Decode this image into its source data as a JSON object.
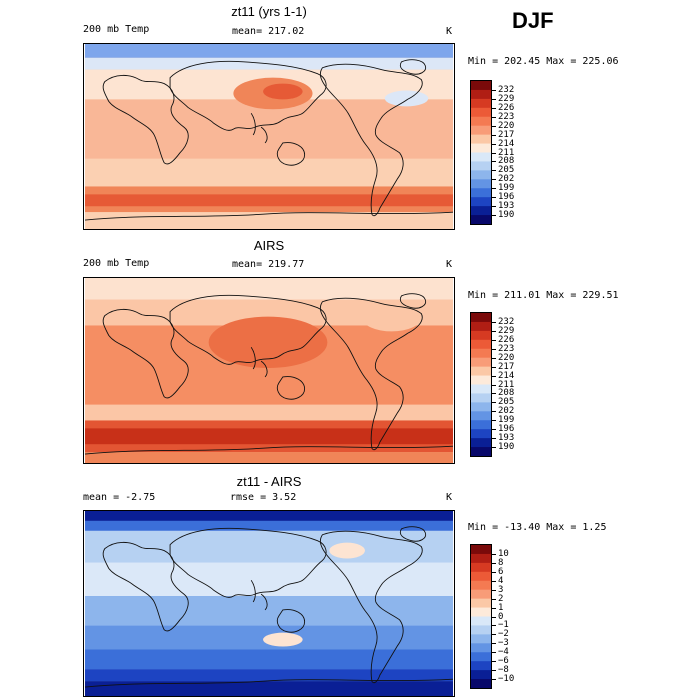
{
  "season": "DJF",
  "panels": [
    {
      "title": "zt11 (yrs 1-1)",
      "left_label": "200 mb Temp",
      "center_label": "mean= 217.02",
      "units": "K",
      "minmax": "Min = 202.45 Max = 225.06",
      "colorbar": {
        "labels": [
          "232",
          "229",
          "226",
          "223",
          "220",
          "217",
          "214",
          "211",
          "208",
          "205",
          "202",
          "199",
          "196",
          "193",
          "190"
        ],
        "colors": [
          "#7a0a0a",
          "#b01e14",
          "#d63a22",
          "#ec5a37",
          "#f47a52",
          "#f89c78",
          "#fbc8a6",
          "#fdeada",
          "#d9e8f8",
          "#b6d1f2",
          "#8db5ec",
          "#6394e4",
          "#3b6fd9",
          "#1d44c2",
          "#0a1f95",
          "#08086a"
        ]
      }
    },
    {
      "title": "AIRS",
      "left_label": "200 mb Temp",
      "center_label": "mean= 219.77",
      "units": "K",
      "minmax": "Min = 211.01 Max = 229.51",
      "colorbar": {
        "labels": [
          "232",
          "229",
          "226",
          "223",
          "220",
          "217",
          "214",
          "211",
          "208",
          "205",
          "202",
          "199",
          "196",
          "193",
          "190"
        ],
        "colors": [
          "#7a0a0a",
          "#b01e14",
          "#d63a22",
          "#ec5a37",
          "#f47a52",
          "#f89c78",
          "#fbc8a6",
          "#fdeada",
          "#d9e8f8",
          "#b6d1f2",
          "#8db5ec",
          "#6394e4",
          "#3b6fd9",
          "#1d44c2",
          "#0a1f95",
          "#08086a"
        ]
      }
    },
    {
      "title": "zt11 - AIRS",
      "left_label": "mean =   -2.75",
      "center_label": "rmse =    3.52",
      "units": "K",
      "minmax": "Min = -13.40 Max =    1.25",
      "colorbar": {
        "labels": [
          "10",
          "8",
          "6",
          "4",
          "3",
          "2",
          "1",
          "0",
          "−1",
          "−2",
          "−3",
          "−4",
          "−6",
          "−8",
          "−10"
        ],
        "colors": [
          "#7a0a0a",
          "#b01e14",
          "#d63a22",
          "#ec5a37",
          "#f47a52",
          "#f89c78",
          "#fbc8a6",
          "#fdeada",
          "#d9e8f8",
          "#b6d1f2",
          "#8db5ec",
          "#6394e4",
          "#3b6fd9",
          "#1d44c2",
          "#0a1f95",
          "#08086a"
        ]
      }
    }
  ]
}
